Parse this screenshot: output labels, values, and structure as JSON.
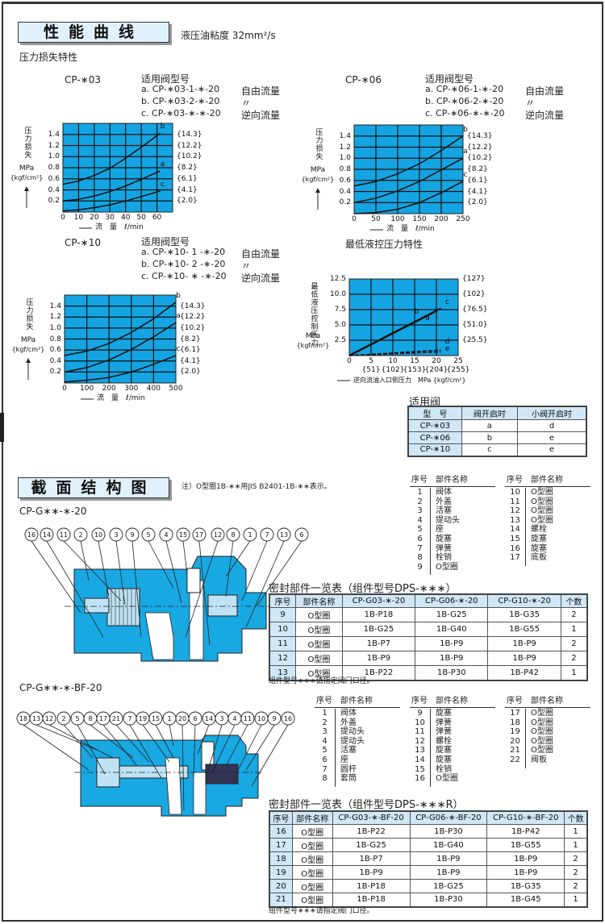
{
  "section1": {
    "title": "性能曲线",
    "oil_viscosity": "液压油粘度 32mm²/s",
    "subtitle": "压力损失特性",
    "groups": [
      {
        "model": "CP-∗03",
        "heading": "适用阀型号",
        "lines": [
          {
            "code": "a.  CP-∗03-1-∗-20",
            "flow": "自由流量"
          },
          {
            "code": "b.  CP-∗03-2-∗-20",
            "flow": "〃"
          },
          {
            "code": "c.  CP-∗03-∗-∗-20",
            "flow": "逆向流量"
          }
        ]
      },
      {
        "model": "CP-∗06",
        "heading": "适用阀型号",
        "lines": [
          {
            "code": "a.  CP-∗06-1-∗-20",
            "flow": "自由流量"
          },
          {
            "code": "b.  CP-∗06-2-∗-20",
            "flow": "〃"
          },
          {
            "code": "c.  CP-∗06-∗-∗-20",
            "flow": "逆向流量"
          }
        ]
      },
      {
        "model": "CP-∗10",
        "heading": "适用阀型号",
        "lines": [
          {
            "code": "a.  CP-∗10-   1 -∗-20",
            "flow": "自由流量"
          },
          {
            "code": "b.  CP-∗10-   2 -∗-20",
            "flow": "〃"
          },
          {
            "code": "c.  CP-∗10-   ∗ -∗-20",
            "flow": "逆向流量"
          }
        ]
      }
    ],
    "min_pilot_title": "最低液控压力特性",
    "applicable": {
      "title": "适用阀",
      "headers": [
        "型　号",
        "阀开启时",
        "小阀开启时"
      ],
      "rows": [
        [
          "CP-∗03",
          "a",
          "d"
        ],
        [
          "CP-∗06",
          "b",
          "e"
        ],
        [
          "CP-∗10",
          "c",
          "e"
        ]
      ]
    }
  },
  "chart_data": [
    {
      "type": "line",
      "ylabel": "压力损失",
      "yunit": "MPa",
      "yunit2": "{kgf/cm²}",
      "xlabel": "流　量　ℓ/min",
      "xlim": [
        0,
        70
      ],
      "ylim": [
        0,
        1.6
      ],
      "xticks": [
        0,
        10,
        20,
        30,
        40,
        50,
        60
      ],
      "yticks": [
        0.2,
        0.4,
        0.6,
        0.8,
        1.0,
        1.2,
        1.4
      ],
      "ytick_labels": [
        "0.2",
        "0.4",
        "0.6",
        "0.8",
        "1.0",
        "1.2",
        "1.4"
      ],
      "right_labels": [
        "{2.0}",
        "{4.1}",
        "{6.1}",
        "{8.2}",
        "{10.2}",
        "{12.2}",
        "{14.3}"
      ],
      "xgrid": 10,
      "ygrid": 0.2,
      "grid": true,
      "background": "#14a4e2",
      "series": [
        {
          "name": "b",
          "points": [
            [
              0,
              0.5
            ],
            [
              10,
              0.56
            ],
            [
              20,
              0.66
            ],
            [
              30,
              0.79
            ],
            [
              40,
              0.97
            ],
            [
              50,
              1.17
            ],
            [
              62,
              1.42
            ]
          ]
        },
        {
          "name": "a",
          "points": [
            [
              0,
              0.2
            ],
            [
              10,
              0.23
            ],
            [
              20,
              0.29
            ],
            [
              30,
              0.37
            ],
            [
              40,
              0.47
            ],
            [
              50,
              0.59
            ],
            [
              62,
              0.74
            ]
          ]
        },
        {
          "name": "c",
          "points": [
            [
              0,
              0.02
            ],
            [
              10,
              0.04
            ],
            [
              20,
              0.08
            ],
            [
              30,
              0.13
            ],
            [
              40,
              0.2
            ],
            [
              50,
              0.28
            ],
            [
              62,
              0.38
            ]
          ]
        }
      ]
    },
    {
      "type": "line",
      "ylabel": "压力损失",
      "yunit": "MPa",
      "yunit2": "{kgf/cm²}",
      "xlabel": "流　量　ℓ/min",
      "xlim": [
        0,
        250
      ],
      "ylim": [
        0,
        1.6
      ],
      "xticks": [
        0,
        50,
        100,
        150,
        200,
        250
      ],
      "yticks": [
        0.2,
        0.4,
        0.6,
        0.8,
        1.0,
        1.2,
        1.4
      ],
      "ytick_labels": [
        "0.2",
        "0.4",
        "0.6",
        "0.8",
        "1.0",
        "1.2",
        "1.4"
      ],
      "right_labels": [
        "{2.0}",
        "{4.1}",
        "{6.1}",
        "{8.2}",
        "{10.2}",
        "{12.2}",
        "{14.3}"
      ],
      "xgrid": 50,
      "ygrid": 0.2,
      "grid": true,
      "background": "#14a4e2",
      "series": [
        {
          "name": "b",
          "points": [
            [
              0,
              0.5
            ],
            [
              50,
              0.58
            ],
            [
              100,
              0.72
            ],
            [
              150,
              0.9
            ],
            [
              200,
              1.14
            ],
            [
              250,
              1.4
            ]
          ]
        },
        {
          "name": "a",
          "points": [
            [
              0,
              0.2
            ],
            [
              50,
              0.28
            ],
            [
              100,
              0.41
            ],
            [
              150,
              0.58
            ],
            [
              200,
              0.79
            ],
            [
              250,
              1.0
            ]
          ]
        },
        {
          "name": "c",
          "points": [
            [
              0,
              0.0
            ],
            [
              50,
              0.02
            ],
            [
              100,
              0.08
            ],
            [
              150,
              0.2
            ],
            [
              200,
              0.38
            ],
            [
              250,
              0.58
            ]
          ]
        }
      ]
    },
    {
      "type": "line",
      "ylabel": "压力损失",
      "yunit": "MPa",
      "yunit2": "{kgf/cm²}",
      "xlabel": "流　量　ℓ/min",
      "xlim": [
        0,
        500
      ],
      "ylim": [
        0,
        1.6
      ],
      "xticks": [
        0,
        100,
        200,
        300,
        400,
        500
      ],
      "yticks": [
        0.2,
        0.4,
        0.6,
        0.8,
        1.0,
        1.2,
        1.4
      ],
      "ytick_labels": [
        "0.2",
        "0.4",
        "0.6",
        "0.8",
        "1.0",
        "1.2",
        "1.4"
      ],
      "right_labels": [
        "{2.0}",
        "{4.1}",
        "{6.1}",
        "{8.2}",
        "{10.2}",
        "{12.2}",
        "{14.3}"
      ],
      "xgrid": 100,
      "ygrid": 0.2,
      "grid": true,
      "background": "#14a4e2",
      "series": [
        {
          "name": "b",
          "points": [
            [
              0,
              0.5
            ],
            [
              100,
              0.58
            ],
            [
              200,
              0.72
            ],
            [
              300,
              0.92
            ],
            [
              400,
              1.17
            ],
            [
              500,
              1.47
            ]
          ]
        },
        {
          "name": "a",
          "points": [
            [
              0,
              0.2
            ],
            [
              100,
              0.28
            ],
            [
              200,
              0.42
            ],
            [
              300,
              0.61
            ],
            [
              400,
              0.84
            ],
            [
              500,
              1.1
            ]
          ]
        },
        {
          "name": "c",
          "points": [
            [
              0,
              0.02
            ],
            [
              100,
              0.05
            ],
            [
              200,
              0.1
            ],
            [
              300,
              0.2
            ],
            [
              400,
              0.34
            ],
            [
              500,
              0.5
            ]
          ]
        }
      ]
    },
    {
      "type": "line",
      "ylabel": "最低液压控制压力",
      "yunit": "MPa",
      "yunit2": "{kgf/cm²}",
      "xlabel": "逆向流油入口侧压力　MPa {kgf/cm²}",
      "xlim": [
        0,
        25
      ],
      "ylim": [
        0,
        12.5
      ],
      "xticks": [
        0,
        5,
        10,
        15,
        20,
        25
      ],
      "yticks": [
        2.5,
        5.0,
        7.5,
        10.0,
        12.5
      ],
      "ytick_labels": [
        "2.5",
        "5.0",
        "7.5",
        "10.0",
        "12.5"
      ],
      "right_labels": [
        "{25.5}",
        "{51.0}",
        "{76.5}",
        "{102}",
        "{127}"
      ],
      "xtick_labels2": [
        "{51}",
        "{102}",
        "{153}",
        "{204}",
        "{255}"
      ],
      "xgrid": 5,
      "ygrid": 2.5,
      "grid": true,
      "background": "#14a4e2",
      "series": [
        {
          "name": "b",
          "points": [
            [
              0,
              0
            ],
            [
              19,
              6.9
            ]
          ],
          "label_at": [
            15.5,
            6.6
          ]
        },
        {
          "name": "a",
          "points": [
            [
              0,
              0
            ],
            [
              20,
              7.3
            ]
          ],
          "label_at": [
            18,
            5.5
          ]
        },
        {
          "name": "c",
          "points": [
            [
              0,
              0
            ],
            [
              21,
              7.7
            ]
          ],
          "label_at": [
            22.5,
            8.2
          ]
        },
        {
          "name": "d",
          "points": [
            [
              0,
              0
            ],
            [
              21,
              0.9
            ]
          ],
          "dashed": true,
          "label_at": [
            22.5,
            1.7
          ]
        },
        {
          "name": "e",
          "points": [
            [
              0,
              0
            ],
            [
              21,
              0.6
            ]
          ],
          "dashed": true,
          "label_at": [
            22.5,
            0.5
          ]
        }
      ]
    }
  ],
  "section2": {
    "title": "截面结构图",
    "note": "注）O型圈1B-∗∗用JIS B2401-1B-∗∗表示。",
    "model1": "CP-G∗∗-∗-20",
    "model2": "CP-G∗∗-∗-BF-20",
    "parts_header": [
      "序号",
      "部件名称"
    ],
    "parts1": [
      [
        [
          "1",
          "阀体"
        ],
        [
          "2",
          "外盖"
        ],
        [
          "3",
          "活塞"
        ],
        [
          "4",
          "提动头"
        ],
        [
          "5",
          "座"
        ],
        [
          "6",
          "旋塞"
        ],
        [
          "7",
          "弹簧"
        ],
        [
          "8",
          "栓销"
        ],
        [
          "9",
          "O型圈"
        ]
      ],
      [
        [
          "10",
          "O型圈"
        ],
        [
          "11",
          "O型圈"
        ],
        [
          "12",
          "O型圈"
        ],
        [
          "13",
          "O型圈"
        ],
        [
          "14",
          "螺栓"
        ],
        [
          "15",
          "旋塞"
        ],
        [
          "16",
          "旋塞"
        ],
        [
          "17",
          "底板"
        ]
      ]
    ],
    "parts2": [
      [
        [
          "1",
          "阀体"
        ],
        [
          "2",
          "外盖"
        ],
        [
          "3",
          "提动头"
        ],
        [
          "4",
          "提动头"
        ],
        [
          "5",
          "活塞"
        ],
        [
          "6",
          "座"
        ],
        [
          "7",
          "圆杆"
        ],
        [
          "8",
          "套筒"
        ]
      ],
      [
        [
          "9",
          "旋塞"
        ],
        [
          "10",
          "弹簧"
        ],
        [
          "11",
          "弹簧"
        ],
        [
          "12",
          "螺栓"
        ],
        [
          "13",
          "旋塞"
        ],
        [
          "14",
          "旋塞"
        ],
        [
          "15",
          "栓销"
        ],
        [
          "16",
          "O型圈"
        ]
      ],
      [
        [
          "17",
          "O型圈"
        ],
        [
          "18",
          "O型圈"
        ],
        [
          "19",
          "O型圈"
        ],
        [
          "20",
          "O型圈"
        ],
        [
          "21",
          "O型圈"
        ],
        [
          "22",
          "阀板"
        ]
      ]
    ],
    "callouts1": [
      "16",
      "14",
      "11",
      "2",
      "10",
      "3",
      "9",
      "5",
      "4",
      "15",
      "17",
      "12",
      "8",
      "1",
      "7",
      "13",
      "6"
    ],
    "callouts2": [
      "18",
      "13",
      "12",
      "2",
      "5",
      "8",
      "17",
      "21",
      "7",
      "19",
      "15",
      "1",
      "20",
      "6",
      "14",
      "3",
      "4",
      "11",
      "10",
      "9",
      "16"
    ],
    "seal1": {
      "title": "密封部件一览表（组件型号DPS-∗∗∗）",
      "headers": [
        "序号",
        "部件名称",
        "CP-G03-∗-20",
        "CP-G06-∗-20",
        "CP-G10-∗-20",
        "个数"
      ],
      "rows": [
        [
          "9",
          "O型圈",
          "1B-P18",
          "1B-G25",
          "1B-G35",
          "2"
        ],
        [
          "10",
          "O型圈",
          "1B-G25",
          "1B-G40",
          "1B-G55",
          "1"
        ],
        [
          "11",
          "O型圈",
          "1B-P7",
          "1B-P9",
          "1B-P9",
          "2"
        ],
        [
          "12",
          "O型圈",
          "1B-P9",
          "1B-P9",
          "1B-P9",
          "2"
        ],
        [
          "13",
          "O型圈",
          "1B-P22",
          "1B-P30",
          "1B-P42",
          "1"
        ]
      ],
      "note": "组件型号∗∗∗请指定阀门口径。"
    },
    "seal2": {
      "title": "密封部件一览表（组件型号DPS-∗∗∗R）",
      "headers": [
        "序号",
        "部件名称",
        "CP-G03-∗-BF-20",
        "CP-G06-∗-BF-20",
        "CP-G10-∗-BF-20",
        "个数"
      ],
      "rows": [
        [
          "16",
          "O型圈",
          "1B-P22",
          "1B-P30",
          "1B-P42",
          "1"
        ],
        [
          "17",
          "O型圈",
          "1B-G25",
          "1B-G40",
          "1B-G55",
          "1"
        ],
        [
          "18",
          "O型圈",
          "1B-P7",
          "1B-P9",
          "1B-P9",
          "2"
        ],
        [
          "19",
          "O型圈",
          "1B-P9",
          "1B-P9",
          "1B-P9",
          "2"
        ],
        [
          "20",
          "O型圈",
          "1B-P18",
          "1B-G25",
          "1B-G35",
          "2"
        ],
        [
          "21",
          "O型圈",
          "1B-P18",
          "1B-P30",
          "1B-G45",
          "1"
        ]
      ],
      "note": "组件型号∗∗∗请指定阀门口径。"
    },
    "body_color": "#18a8e2"
  }
}
